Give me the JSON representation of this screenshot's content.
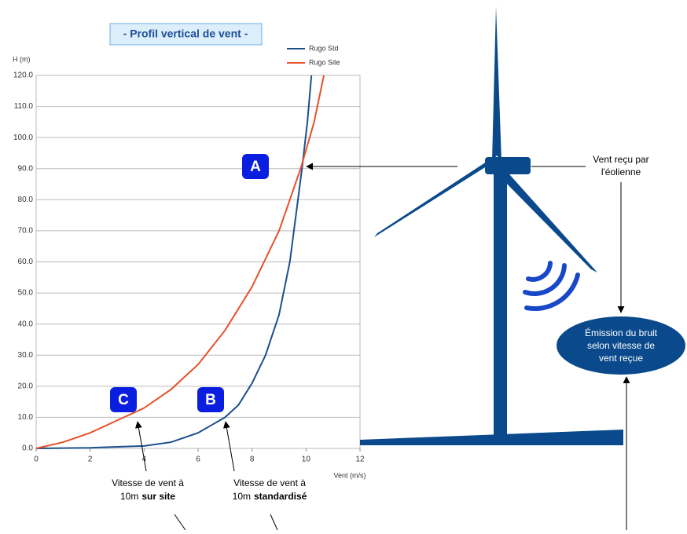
{
  "chart_data": {
    "type": "line",
    "title": "- Profil vertical de vent -",
    "y_label": "H (m)",
    "x_label": "Vent (m/s)",
    "xlim": [
      0,
      12
    ],
    "xticks": [
      0,
      2,
      4,
      6,
      8,
      10,
      12
    ],
    "ylim": [
      0,
      120
    ],
    "yticks": [
      {
        "value": 0,
        "label": "0.0"
      },
      {
        "value": 10,
        "label": "10.0"
      },
      {
        "value": 20,
        "label": "20.0"
      },
      {
        "value": 30,
        "label": "30.0"
      },
      {
        "value": 40,
        "label": "40.0"
      },
      {
        "value": 50,
        "label": "50.0"
      },
      {
        "value": 60,
        "label": "60.0"
      },
      {
        "value": 70,
        "label": "70.0"
      },
      {
        "value": 80,
        "label": "80.0"
      },
      {
        "value": 90,
        "label": "90.0"
      },
      {
        "value": 100,
        "label": "100.0"
      },
      {
        "value": 110,
        "label": "110.0"
      },
      {
        "value": 120,
        "label": "120.0"
      }
    ],
    "grid": true,
    "series": [
      {
        "name": "Rugo Std",
        "color": "#1c4f8c",
        "x": [
          0,
          2,
          4,
          5,
          6,
          6.5,
          7,
          7.5,
          8,
          8.5,
          9,
          9.4,
          9.7,
          9.85,
          10.05,
          10.2
        ],
        "values": [
          0,
          0.2,
          0.8,
          2,
          5,
          7.5,
          10,
          14,
          21,
          30,
          43,
          60,
          80,
          90,
          105,
          120
        ]
      },
      {
        "name": "Rugo Site",
        "color": "#e8502a",
        "x": [
          0,
          1,
          2,
          3,
          4,
          5,
          6,
          7,
          8,
          9,
          9.8,
          10.3,
          10.66
        ],
        "values": [
          0,
          2,
          5,
          9,
          13,
          19,
          27,
          38,
          52,
          70,
          90,
          105,
          120
        ]
      }
    ],
    "annotations": {
      "point_a": "A",
      "point_b": "B",
      "point_c": "C",
      "site_note": [
        "Vitesse de vent à",
        "10m",
        "sur site"
      ],
      "std_note": [
        "Vitesse de vent à",
        "10m",
        "standardisé"
      ],
      "turbine_note": [
        "Vent reçu par",
        "l'éolienne"
      ],
      "noise_note": [
        "Émission du bruit",
        "selon vitesse de",
        "vent reçue"
      ]
    }
  }
}
